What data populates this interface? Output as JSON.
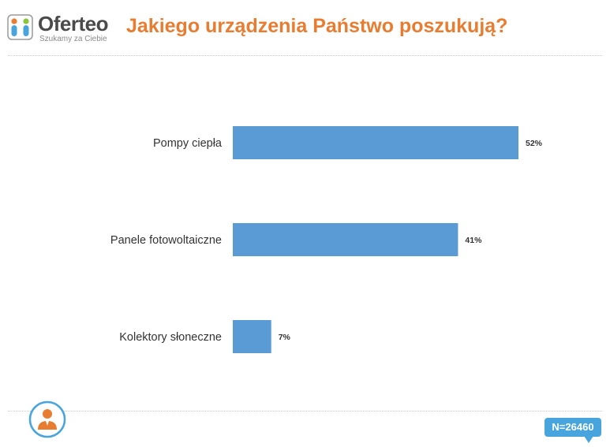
{
  "brand": {
    "name": "Oferteo",
    "tagline": "Szukamy za Ciebie",
    "colors": {
      "orange": "#e87d31",
      "green": "#8cc63f",
      "blue": "#48a4dd",
      "grey": "#6d6d6d"
    }
  },
  "title": "Jakiego urządzenia Państwo poszukują?",
  "chart_data": {
    "type": "bar",
    "orientation": "horizontal",
    "categories": [
      "Pompy ciepła",
      "Panele fotowoltaiczne",
      "Kolektory słoneczne"
    ],
    "values": [
      52,
      41,
      7
    ],
    "value_labels": [
      "52%",
      "41%",
      "7%"
    ],
    "bar_color": "#5b9bd5",
    "xlim": [
      0,
      52
    ],
    "grid": false,
    "legend": "none"
  },
  "sample": {
    "label": "N=26460",
    "color": "#48a4dd"
  },
  "icons": {
    "logo": "oferteo-logo-icon",
    "respondent": "person-icon"
  }
}
